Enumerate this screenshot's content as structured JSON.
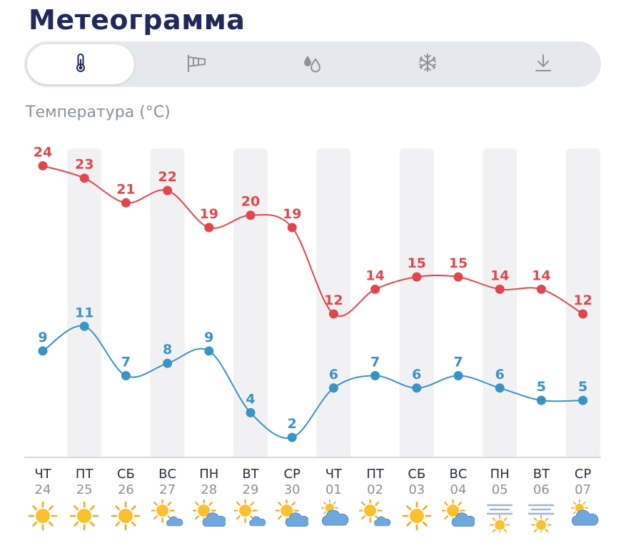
{
  "header": {
    "title": "Метеограмма"
  },
  "tabs": [
    {
      "icon": "thermometer-icon",
      "active": true
    },
    {
      "icon": "windsock-icon",
      "active": false
    },
    {
      "icon": "drops-icon",
      "active": false
    },
    {
      "icon": "snowflake-icon",
      "active": false
    },
    {
      "icon": "download-icon",
      "active": false
    }
  ],
  "colors": {
    "max": "#e0474c",
    "min": "#3a93c4",
    "title": "#1f2a5a",
    "stripe": "#f1f1f3"
  },
  "chart_data": {
    "type": "line",
    "title": "Температура (°C)",
    "categories": [
      "ЧТ 24",
      "ПТ 25",
      "СБ 26",
      "ВС 27",
      "ПН 28",
      "ВТ 29",
      "СР 30",
      "ЧТ 01",
      "ПТ 02",
      "СБ 03",
      "ВС 04",
      "ПН 05",
      "ВТ 06",
      "СР 07"
    ],
    "days": [
      "ЧТ",
      "ПТ",
      "СБ",
      "ВС",
      "ПН",
      "ВТ",
      "СР",
      "ЧТ",
      "ПТ",
      "СБ",
      "ВС",
      "ПН",
      "ВТ",
      "СР"
    ],
    "dates": [
      "24",
      "25",
      "26",
      "27",
      "28",
      "29",
      "30",
      "01",
      "02",
      "03",
      "04",
      "05",
      "06",
      "07"
    ],
    "weather_icons": [
      "sun-icon",
      "sun-icon",
      "sun-icon",
      "sun-small-cloud-icon",
      "sun-cloud-icon",
      "sun-small-cloud-icon",
      "sun-cloud-icon",
      "cloud-sun-icon",
      "sun-small-cloud-icon",
      "sun-icon",
      "sun-cloud-icon",
      "fog-sun-icon",
      "fog-sun-icon",
      "cloud-sun-icon"
    ],
    "series": [
      {
        "values": [
          24,
          23,
          21,
          22,
          19,
          20,
          19,
          12,
          14,
          15,
          15,
          14,
          14,
          12
        ]
      },
      {
        "values": [
          9,
          11,
          7,
          8,
          9,
          4,
          2,
          6,
          7,
          6,
          7,
          6,
          5,
          5
        ]
      }
    ],
    "grid": false
  }
}
